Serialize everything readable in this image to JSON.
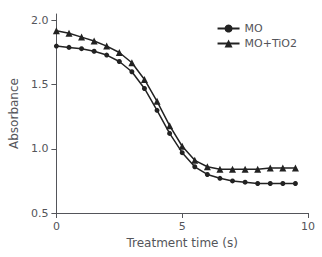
{
  "chart_data": {
    "type": "line",
    "xlabel": "Treatment time (s)",
    "ylabel": "Absorbance",
    "xlim": [
      0,
      10
    ],
    "ylim": [
      0.5,
      2.05
    ],
    "xticks": [
      0,
      5,
      10
    ],
    "yticks": [
      0.5,
      {
        "value": 1.0,
        "label": "1.0"
      },
      1.5,
      {
        "value": 2.0,
        "label": "2.0"
      }
    ],
    "grid": false,
    "legend": "upper right",
    "series": [
      {
        "name": "MO",
        "color": "#222222",
        "marker": "circle",
        "x": [
          0,
          0.5,
          1.0,
          1.5,
          2.0,
          2.5,
          3.0,
          3.5,
          4.0,
          4.5,
          5.0,
          5.5,
          6.0,
          6.5,
          7.0,
          7.5,
          8.0,
          8.5,
          9.0,
          9.5
        ],
        "values": [
          1.8,
          1.79,
          1.78,
          1.76,
          1.73,
          1.68,
          1.6,
          1.47,
          1.3,
          1.12,
          0.97,
          0.86,
          0.8,
          0.77,
          0.75,
          0.74,
          0.73,
          0.73,
          0.73,
          0.73
        ]
      },
      {
        "name": "MO+TiO2",
        "color": "#222222",
        "marker": "triangle",
        "x": [
          0,
          0.5,
          1.0,
          1.5,
          2.0,
          2.5,
          3.0,
          3.5,
          4.0,
          4.5,
          5.0,
          5.5,
          6.0,
          6.5,
          7.0,
          7.5,
          8.0,
          8.5,
          9.0,
          9.5
        ],
        "values": [
          1.92,
          1.9,
          1.87,
          1.84,
          1.8,
          1.75,
          1.67,
          1.54,
          1.37,
          1.18,
          1.02,
          0.91,
          0.86,
          0.84,
          0.84,
          0.84,
          0.84,
          0.85,
          0.85,
          0.85
        ]
      }
    ]
  }
}
